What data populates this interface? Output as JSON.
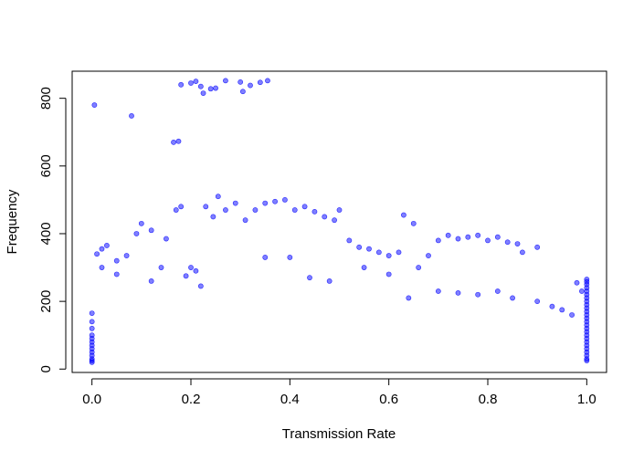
{
  "chart_data": {
    "type": "scatter",
    "title": "",
    "xlabel": "Transmission Rate",
    "ylabel": "Frequency",
    "xlim": [
      -0.04,
      1.04
    ],
    "ylim": [
      -10,
      880
    ],
    "x_ticks": [
      0.0,
      0.2,
      0.4,
      0.6,
      0.8,
      1.0
    ],
    "x_tick_labels": [
      "0.0",
      "0.2",
      "0.4",
      "0.6",
      "0.8",
      "1.0"
    ],
    "y_ticks": [
      0,
      200,
      400,
      600,
      800
    ],
    "y_tick_labels": [
      "0",
      "200",
      "400",
      "600",
      "800"
    ],
    "grid": false,
    "legend": "none",
    "point_color": "#0000ff",
    "point_opacity": 0.5,
    "series": [
      {
        "points": [
          [
            0.005,
            780
          ],
          [
            0.08,
            748
          ],
          [
            0.165,
            670
          ],
          [
            0.175,
            673
          ],
          [
            0.18,
            840
          ],
          [
            0.2,
            845
          ],
          [
            0.21,
            850
          ],
          [
            0.22,
            835
          ],
          [
            0.225,
            815
          ],
          [
            0.24,
            828
          ],
          [
            0.25,
            830
          ],
          [
            0.27,
            852
          ],
          [
            0.3,
            848
          ],
          [
            0.305,
            820
          ],
          [
            0.32,
            838
          ],
          [
            0.34,
            847
          ],
          [
            0.355,
            852
          ],
          [
            0.01,
            340
          ],
          [
            0.02,
            355
          ],
          [
            0.03,
            365
          ],
          [
            0.05,
            320
          ],
          [
            0.07,
            335
          ],
          [
            0.09,
            400
          ],
          [
            0.1,
            430
          ],
          [
            0.12,
            410
          ],
          [
            0.14,
            300
          ],
          [
            0.15,
            385
          ],
          [
            0.17,
            470
          ],
          [
            0.18,
            480
          ],
          [
            0.19,
            275
          ],
          [
            0.2,
            300
          ],
          [
            0.21,
            290
          ],
          [
            0.23,
            480
          ],
          [
            0.245,
            450
          ],
          [
            0.255,
            510
          ],
          [
            0.27,
            470
          ],
          [
            0.29,
            490
          ],
          [
            0.31,
            440
          ],
          [
            0.33,
            470
          ],
          [
            0.35,
            490
          ],
          [
            0.37,
            495
          ],
          [
            0.39,
            500
          ],
          [
            0.41,
            470
          ],
          [
            0.43,
            480
          ],
          [
            0.45,
            465
          ],
          [
            0.47,
            450
          ],
          [
            0.49,
            440
          ],
          [
            0.5,
            470
          ],
          [
            0.52,
            380
          ],
          [
            0.54,
            360
          ],
          [
            0.56,
            355
          ],
          [
            0.58,
            345
          ],
          [
            0.6,
            335
          ],
          [
            0.62,
            345
          ],
          [
            0.63,
            455
          ],
          [
            0.65,
            430
          ],
          [
            0.66,
            300
          ],
          [
            0.68,
            335
          ],
          [
            0.7,
            380
          ],
          [
            0.72,
            395
          ],
          [
            0.74,
            385
          ],
          [
            0.76,
            390
          ],
          [
            0.78,
            395
          ],
          [
            0.8,
            380
          ],
          [
            0.82,
            390
          ],
          [
            0.84,
            375
          ],
          [
            0.86,
            370
          ],
          [
            0.87,
            345
          ],
          [
            0.9,
            360
          ],
          [
            0.02,
            300
          ],
          [
            0.05,
            280
          ],
          [
            0.12,
            260
          ],
          [
            0.22,
            245
          ],
          [
            0.35,
            330
          ],
          [
            0.4,
            330
          ],
          [
            0.44,
            270
          ],
          [
            0.48,
            260
          ],
          [
            0.55,
            300
          ],
          [
            0.6,
            280
          ],
          [
            0.64,
            210
          ],
          [
            0.7,
            230
          ],
          [
            0.74,
            225
          ],
          [
            0.78,
            220
          ],
          [
            0.82,
            230
          ],
          [
            0.85,
            210
          ],
          [
            0.9,
            200
          ],
          [
            0.93,
            185
          ],
          [
            0.95,
            175
          ],
          [
            0.97,
            160
          ],
          [
            0.98,
            255
          ],
          [
            0.99,
            230
          ],
          [
            1.0,
            265
          ],
          [
            1.0,
            258
          ],
          [
            1.0,
            250
          ],
          [
            1.0,
            240
          ],
          [
            1.0,
            230
          ],
          [
            1.0,
            220
          ],
          [
            1.0,
            210
          ],
          [
            1.0,
            200
          ],
          [
            1.0,
            190
          ],
          [
            1.0,
            180
          ],
          [
            1.0,
            170
          ],
          [
            1.0,
            160
          ],
          [
            1.0,
            150
          ],
          [
            1.0,
            140
          ],
          [
            1.0,
            130
          ],
          [
            1.0,
            120
          ],
          [
            1.0,
            110
          ],
          [
            1.0,
            100
          ],
          [
            1.0,
            90
          ],
          [
            1.0,
            80
          ],
          [
            1.0,
            70
          ],
          [
            1.0,
            60
          ],
          [
            1.0,
            50
          ],
          [
            1.0,
            40
          ],
          [
            1.0,
            30
          ],
          [
            1.0,
            25
          ],
          [
            0.0,
            165
          ],
          [
            0.0,
            140
          ],
          [
            0.0,
            120
          ],
          [
            0.0,
            100
          ],
          [
            0.0,
            90
          ],
          [
            0.0,
            80
          ],
          [
            0.0,
            70
          ],
          [
            0.0,
            60
          ],
          [
            0.0,
            50
          ],
          [
            0.0,
            40
          ],
          [
            0.0,
            30
          ],
          [
            0.0,
            25
          ],
          [
            0.0,
            20
          ]
        ]
      }
    ]
  }
}
